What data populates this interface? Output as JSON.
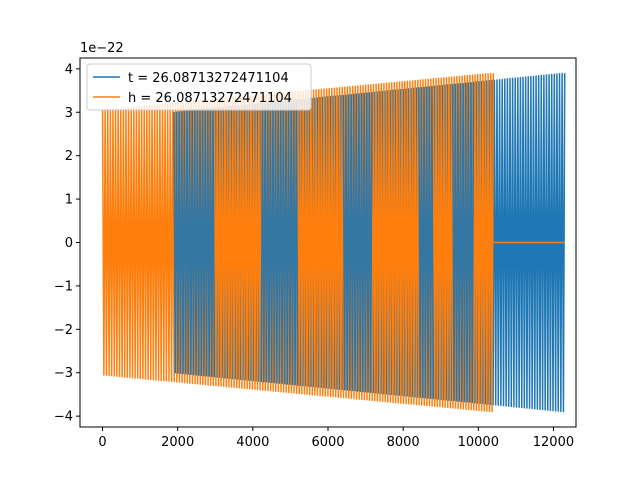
{
  "chart_data": {
    "type": "line",
    "title": "",
    "xlabel": "",
    "ylabel": "",
    "y_scale_label": "1e−22",
    "xlim": [
      -600,
      12600
    ],
    "ylim": [
      -4.25,
      4.25
    ],
    "x_ticks": [
      0,
      2000,
      4000,
      6000,
      8000,
      10000,
      12000
    ],
    "x_tick_labels": [
      "0",
      "2000",
      "4000",
      "6000",
      "8000",
      "10000",
      "12000"
    ],
    "y_ticks": [
      -4,
      -3,
      -2,
      -1,
      0,
      1,
      2,
      3,
      4
    ],
    "y_tick_labels": [
      "−4",
      "−3",
      "−2",
      "−1",
      "0",
      "1",
      "2",
      "3",
      "4"
    ],
    "grid": false,
    "legend_position": "upper-left",
    "series": [
      {
        "name": "t = 26.08713272471104",
        "color": "#1f77b4",
        "segments": [
          {
            "x_start": 0,
            "x_end": 1900,
            "kind": "zero"
          },
          {
            "x_start": 1900,
            "x_end": 12300,
            "kind": "oscillation",
            "amplitude_start": 3.0,
            "amplitude_end": 3.9,
            "cycles": 150
          }
        ]
      },
      {
        "name": "h = 26.08713272471104",
        "color": "#ff7f0e",
        "segments": [
          {
            "x_start": 0,
            "x_end": 10400,
            "kind": "oscillation",
            "amplitude_start": 3.05,
            "amplitude_end": 3.9,
            "cycles": 150
          },
          {
            "x_start": 10400,
            "x_end": 12300,
            "kind": "zero"
          }
        ]
      }
    ],
    "overlay_spans": [
      {
        "color": "#1f77b4",
        "x_start": 1900,
        "x_end": 3000
      },
      {
        "color": "#1f77b4",
        "x_start": 4200,
        "x_end": 5200
      },
      {
        "color": "#1f77b4",
        "x_start": 6400,
        "x_end": 7200
      },
      {
        "color": "#1f77b4",
        "x_start": 8400,
        "x_end": 8800
      },
      {
        "color": "#1f77b4",
        "x_start": 9300,
        "x_end": 9900
      }
    ]
  }
}
